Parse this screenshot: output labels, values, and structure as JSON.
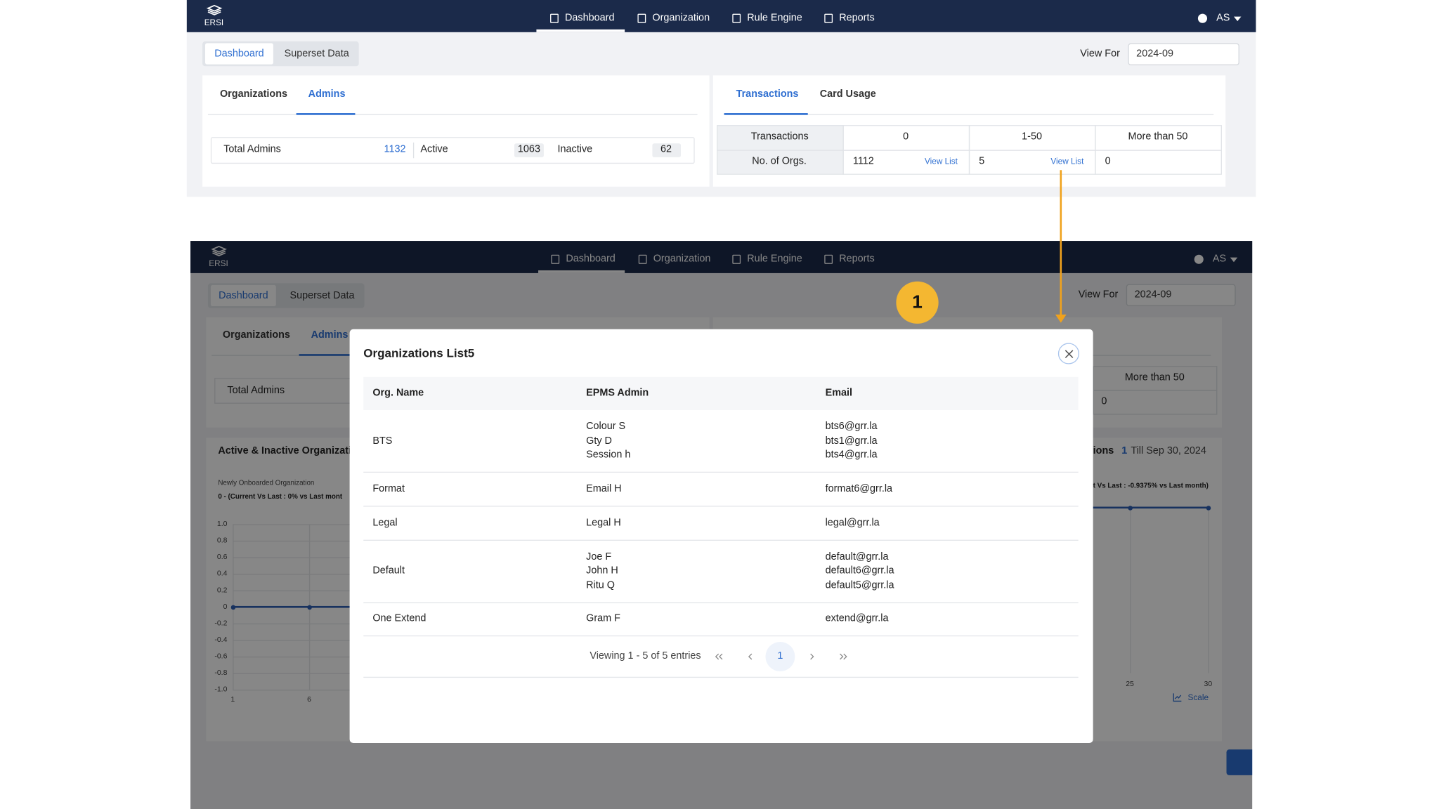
{
  "nav": {
    "brand": "ERSI",
    "items": [
      "Dashboard",
      "Organization",
      "Rule Engine",
      "Reports"
    ],
    "user": "AS"
  },
  "tabs": [
    "Dashboard",
    "Superset Data"
  ],
  "view_for": {
    "label": "View For",
    "value": "2024-09"
  },
  "admins_panel": {
    "tabs": [
      "Organizations",
      "Admins"
    ],
    "stats": [
      {
        "label": "Total Admins",
        "value": "1132"
      },
      {
        "label": "Active",
        "value": "1063"
      },
      {
        "label": "Inactive",
        "value": "62"
      }
    ]
  },
  "transactions_panel": {
    "tabs": [
      "Transactions",
      "Card Usage"
    ],
    "header": [
      "Transactions",
      "0",
      "1-50",
      "More than 50"
    ],
    "row_label": "No. of Orgs.",
    "cells": [
      {
        "value": "1112",
        "link": "View List"
      },
      {
        "value": "5",
        "link": "View List"
      },
      {
        "value": "0"
      }
    ]
  },
  "charts": {
    "left": {
      "title": "Active & Inactive Organization",
      "subtitle": "Newly Onboarded Organization",
      "summary": "0 - (Current Vs Last : 0% vs Last mont",
      "yticks": [
        "1.0",
        "0.8",
        "0.6",
        "0.4",
        "0.2",
        "0",
        "-0.2",
        "-0.4",
        "-0.6",
        "-0.8",
        "-1.0"
      ],
      "xticks": [
        "1",
        "6"
      ]
    },
    "right": {
      "title": "ions",
      "count": "1",
      "till": "Till Sep 30, 2024",
      "summary": "t Vs Last : -0.9375% vs Last month)",
      "xticks": [
        "25",
        "30"
      ],
      "scale": "Scale"
    }
  },
  "modal": {
    "title": "Organizations List5",
    "columns": [
      "Org. Name",
      "EPMS Admin",
      "Email"
    ],
    "rows": [
      {
        "org": "BTS",
        "admins": [
          "Colour S",
          "Gty D",
          "Session h"
        ],
        "emails": [
          "bts6@grr.la",
          "bts1@grr.la",
          "bts4@grr.la"
        ]
      },
      {
        "org": "Format",
        "admins": [
          "Email H"
        ],
        "emails": [
          "format6@grr.la"
        ]
      },
      {
        "org": "Legal",
        "admins": [
          "Legal H"
        ],
        "emails": [
          "legal@grr.la"
        ]
      },
      {
        "org": "Default",
        "admins": [
          "Joe F",
          "John H",
          "Ritu Q"
        ],
        "emails": [
          "default@grr.la",
          "default6@grr.la",
          "default5@grr.la"
        ]
      },
      {
        "org": "One Extend",
        "admins": [
          "Gram F"
        ],
        "emails": [
          "extend@grr.la"
        ]
      }
    ],
    "pagination": {
      "info": "Viewing 1 - 5 of 5 entries",
      "page": "1"
    }
  },
  "callout": {
    "number": "1"
  }
}
